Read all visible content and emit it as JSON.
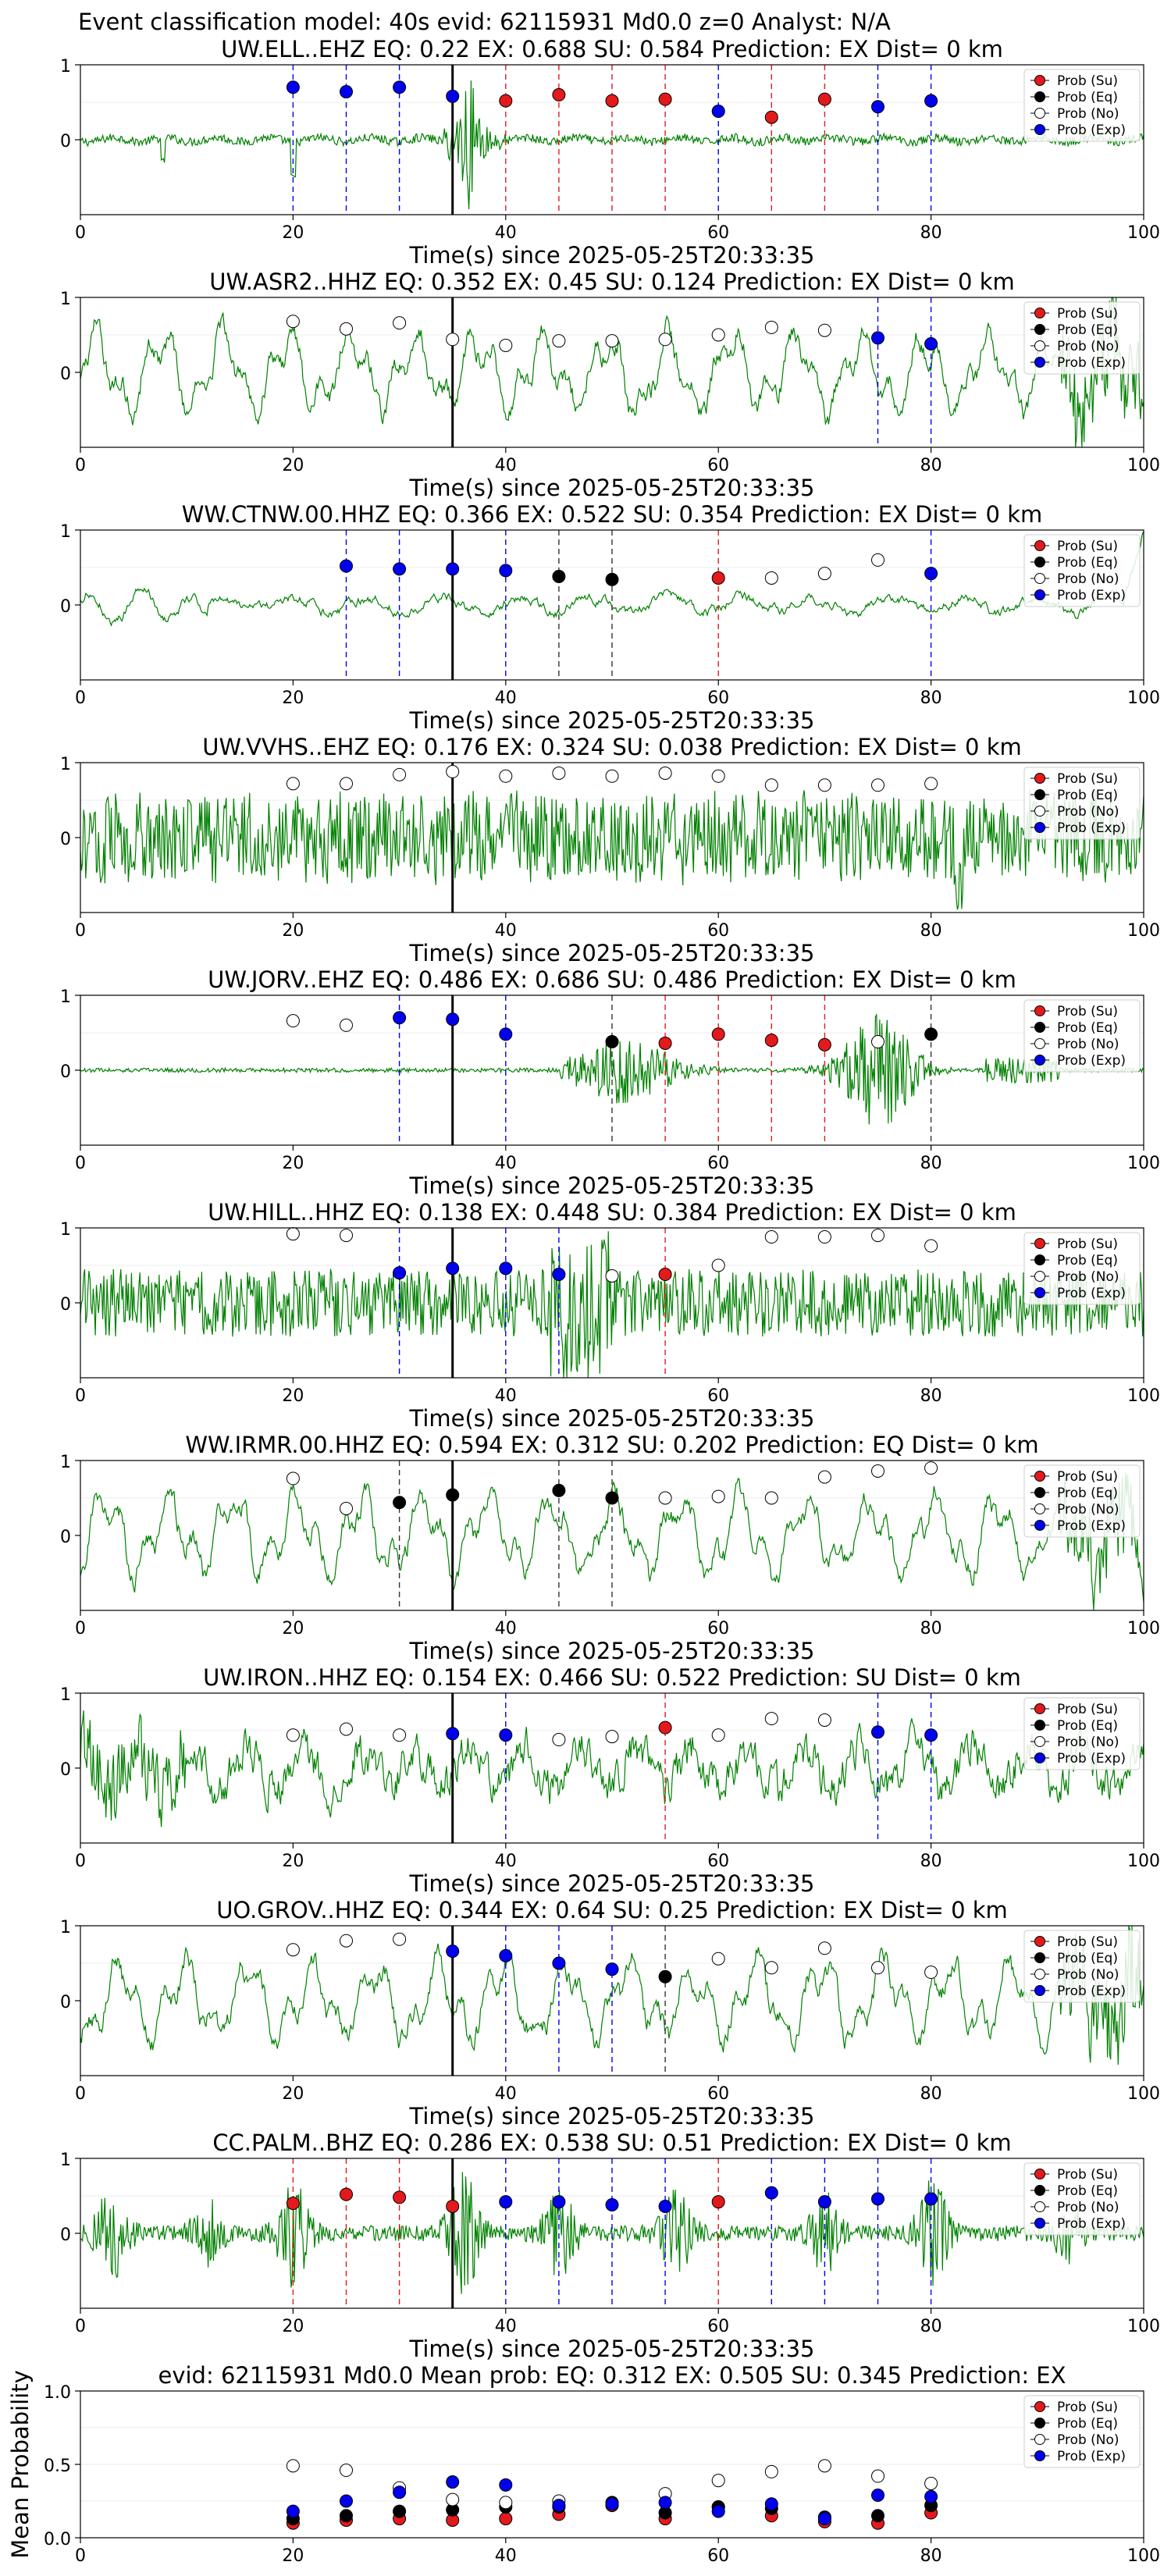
{
  "figure": {
    "suptitle": "Event classification model: 40s evid: 62115931 Md0.0 z=0 Analyst: N/A"
  },
  "colors": {
    "waveform": "#008000",
    "su": "#e31a1c",
    "eq": "#000000",
    "no": "#ffffff",
    "exp": "#0000ee",
    "su_line": "#e31a1c",
    "exp_line": "#0000ee",
    "eq_line": "#333333",
    "origin_line": "#000000"
  },
  "legend": [
    "Prob (Su)",
    "Prob (Eq)",
    "Prob (No)",
    "Prob (Exp)"
  ],
  "chart_data": [
    {
      "type": "line",
      "title": "UW.ELL..EHZ   EQ: 0.22   EX: 0.688   SU: 0.584   Prediction: EX    Dist= 0 km",
      "xlabel": "Time(s) since 2025-05-25T20:33:35",
      "xlim": [
        0,
        100
      ],
      "ylim": [
        -1,
        1
      ],
      "xticks": [
        "0",
        "20",
        "40",
        "60",
        "80",
        "100"
      ],
      "yticks": [
        "1",
        "0"
      ],
      "origin": 35,
      "style": "impulsive",
      "x": [
        20,
        25,
        30,
        35,
        40,
        45,
        50,
        55,
        60,
        65,
        70,
        75,
        80
      ],
      "points": [
        [
          "Exp",
          0.7
        ],
        [
          "Exp",
          0.64
        ],
        [
          "Exp",
          0.7
        ],
        [
          "Exp",
          0.58
        ],
        [
          "Su",
          0.52
        ],
        [
          "Su",
          0.6
        ],
        [
          "Su",
          0.52
        ],
        [
          "Su",
          0.54
        ],
        [
          "Exp",
          0.38
        ],
        [
          "Su",
          0.3
        ],
        [
          "Su",
          0.54
        ],
        [
          "Exp",
          0.44
        ],
        [
          "Exp",
          0.52
        ]
      ]
    },
    {
      "type": "line",
      "title": "UW.ASR2..HHZ   EQ: 0.352   EX: 0.45   SU: 0.124   Prediction: EX    Dist= 0 km",
      "xlabel": "Time(s) since 2025-05-25T20:33:35",
      "xlim": [
        0,
        100
      ],
      "ylim": [
        -1,
        1
      ],
      "xticks": [
        "0",
        "20",
        "40",
        "60",
        "80",
        "100"
      ],
      "yticks": [
        "1",
        "0"
      ],
      "origin": 35,
      "style": "smooth",
      "x": [
        20,
        25,
        30,
        35,
        40,
        45,
        50,
        55,
        60,
        65,
        70,
        75,
        80
      ],
      "points": [
        [
          "No",
          0.68
        ],
        [
          "No",
          0.58
        ],
        [
          "No",
          0.66
        ],
        [
          "No",
          0.44
        ],
        [
          "No",
          0.36
        ],
        [
          "No",
          0.42
        ],
        [
          "No",
          0.42
        ],
        [
          "No",
          0.44
        ],
        [
          "No",
          0.5
        ],
        [
          "No",
          0.6
        ],
        [
          "No",
          0.56
        ],
        [
          "Exp",
          0.46
        ],
        [
          "Exp",
          0.38
        ]
      ]
    },
    {
      "type": "line",
      "title": "WW.CTNW.00.HHZ   EQ: 0.366   EX: 0.522   SU: 0.354   Prediction: EX    Dist= 0 km",
      "xlabel": "Time(s) since 2025-05-25T20:33:35",
      "xlim": [
        0,
        100
      ],
      "ylim": [
        -1,
        1
      ],
      "xticks": [
        "0",
        "20",
        "40",
        "60",
        "80",
        "100"
      ],
      "yticks": [
        "1",
        "0"
      ],
      "origin": 35,
      "style": "calm",
      "x": [
        25,
        30,
        35,
        40,
        45,
        50,
        60,
        65,
        70,
        75,
        80
      ],
      "points": [
        [
          "Exp",
          0.52
        ],
        [
          "Exp",
          0.48
        ],
        [
          "Exp",
          0.48
        ],
        [
          "Exp",
          0.46
        ],
        [
          "Eq",
          0.38
        ],
        [
          "Eq",
          0.34
        ],
        [
          "Su",
          0.36
        ],
        [
          "No",
          0.36
        ],
        [
          "No",
          0.42
        ],
        [
          "No",
          0.6
        ],
        [
          "Exp",
          0.42
        ]
      ]
    },
    {
      "type": "line",
      "title": "UW.VVHS..EHZ   EQ: 0.176   EX: 0.324   SU: 0.038   Prediction: EX    Dist= 0 km",
      "xlabel": "Time(s) since 2025-05-25T20:33:35",
      "xlim": [
        0,
        100
      ],
      "ylim": [
        -1,
        1
      ],
      "xticks": [
        "0",
        "20",
        "40",
        "60",
        "80",
        "100"
      ],
      "yticks": [
        "1",
        "0"
      ],
      "origin": 35,
      "style": "noise",
      "x": [
        20,
        25,
        30,
        35,
        40,
        45,
        50,
        55,
        60,
        65,
        70,
        75,
        80
      ],
      "points": [
        [
          "No",
          0.72
        ],
        [
          "No",
          0.72
        ],
        [
          "No",
          0.84
        ],
        [
          "No",
          0.88
        ],
        [
          "No",
          0.82
        ],
        [
          "No",
          0.86
        ],
        [
          "No",
          0.82
        ],
        [
          "No",
          0.86
        ],
        [
          "No",
          0.82
        ],
        [
          "No",
          0.7
        ],
        [
          "No",
          0.7
        ],
        [
          "No",
          0.7
        ],
        [
          "No",
          0.72
        ]
      ]
    },
    {
      "type": "line",
      "title": "UW.JORV..EHZ   EQ: 0.486   EX: 0.686   SU: 0.486   Prediction: EX    Dist= 0 km",
      "xlabel": "Time(s) since 2025-05-25T20:33:35",
      "xlim": [
        0,
        100
      ],
      "ylim": [
        -1,
        1
      ],
      "xticks": [
        "0",
        "20",
        "40",
        "60",
        "80",
        "100"
      ],
      "yticks": [
        "1",
        "0"
      ],
      "origin": 35,
      "style": "bursts",
      "x": [
        20,
        25,
        30,
        35,
        40,
        50,
        55,
        60,
        65,
        70,
        75,
        80
      ],
      "points": [
        [
          "No",
          0.66
        ],
        [
          "No",
          0.6
        ],
        [
          "Exp",
          0.7
        ],
        [
          "Exp",
          0.68
        ],
        [
          "Exp",
          0.48
        ],
        [
          "Eq",
          0.38
        ],
        [
          "Su",
          0.36
        ],
        [
          "Su",
          0.48
        ],
        [
          "Su",
          0.4
        ],
        [
          "Su",
          0.34
        ],
        [
          "No",
          0.38
        ],
        [
          "Eq",
          0.48
        ]
      ]
    },
    {
      "type": "line",
      "title": "UW.HILL..HHZ   EQ: 0.138   EX: 0.448   SU: 0.384   Prediction: EX    Dist= 0 km",
      "xlabel": "Time(s) since 2025-05-25T20:33:35",
      "xlim": [
        0,
        100
      ],
      "ylim": [
        -1,
        1
      ],
      "xticks": [
        "0",
        "20",
        "40",
        "60",
        "80",
        "100"
      ],
      "yticks": [
        "1",
        "0"
      ],
      "origin": 35,
      "style": "noise2",
      "x": [
        20,
        25,
        30,
        35,
        40,
        45,
        50,
        55,
        60,
        65,
        70,
        75,
        80
      ],
      "points": [
        [
          "No",
          0.92
        ],
        [
          "No",
          0.9
        ],
        [
          "Exp",
          0.4
        ],
        [
          "Exp",
          0.46
        ],
        [
          "Exp",
          0.46
        ],
        [
          "Exp",
          0.38
        ],
        [
          "No",
          0.36
        ],
        [
          "Su",
          0.38
        ],
        [
          "No",
          0.5
        ],
        [
          "No",
          0.88
        ],
        [
          "No",
          0.88
        ],
        [
          "No",
          0.9
        ],
        [
          "No",
          0.76
        ]
      ]
    },
    {
      "type": "line",
      "title": "WW.IRMR.00.HHZ   EQ: 0.594   EX: 0.312   SU: 0.202   Prediction: EQ    Dist= 0 km",
      "xlabel": "Time(s) since 2025-05-25T20:33:35",
      "xlim": [
        0,
        100
      ],
      "ylim": [
        -1,
        1
      ],
      "xticks": [
        "0",
        "20",
        "40",
        "60",
        "80",
        "100"
      ],
      "yticks": [
        "1",
        "0"
      ],
      "origin": 35,
      "style": "smooth",
      "x": [
        20,
        25,
        30,
        35,
        45,
        50,
        55,
        60,
        65,
        70,
        75,
        80
      ],
      "points": [
        [
          "No",
          0.76
        ],
        [
          "No",
          0.36
        ],
        [
          "Eq",
          0.44
        ],
        [
          "Eq",
          0.54
        ],
        [
          "Eq",
          0.6
        ],
        [
          "Eq",
          0.5
        ],
        [
          "No",
          0.5
        ],
        [
          "No",
          0.52
        ],
        [
          "No",
          0.5
        ],
        [
          "No",
          0.78
        ],
        [
          "No",
          0.86
        ],
        [
          "No",
          0.9
        ]
      ]
    },
    {
      "type": "line",
      "title": "UW.IRON..HHZ   EQ: 0.154   EX: 0.466   SU: 0.522   Prediction: SU    Dist= 0 km",
      "xlabel": "Time(s) since 2025-05-25T20:33:35",
      "xlim": [
        0,
        100
      ],
      "ylim": [
        -1,
        1
      ],
      "xticks": [
        "0",
        "20",
        "40",
        "60",
        "80",
        "100"
      ],
      "yticks": [
        "1",
        "0"
      ],
      "origin": 35,
      "style": "rough",
      "x": [
        20,
        25,
        30,
        35,
        40,
        45,
        50,
        55,
        60,
        65,
        70,
        75,
        80
      ],
      "points": [
        [
          "No",
          0.44
        ],
        [
          "No",
          0.52
        ],
        [
          "No",
          0.44
        ],
        [
          "Exp",
          0.46
        ],
        [
          "Exp",
          0.44
        ],
        [
          "No",
          0.38
        ],
        [
          "No",
          0.42
        ],
        [
          "Su",
          0.54
        ],
        [
          "No",
          0.44
        ],
        [
          "No",
          0.66
        ],
        [
          "No",
          0.64
        ],
        [
          "Exp",
          0.48
        ],
        [
          "Exp",
          0.44
        ]
      ]
    },
    {
      "type": "line",
      "title": "UO.GROV..HHZ   EQ: 0.344   EX: 0.64   SU: 0.25   Prediction: EX    Dist= 0 km",
      "xlabel": "Time(s) since 2025-05-25T20:33:35",
      "xlim": [
        0,
        100
      ],
      "ylim": [
        -1,
        1
      ],
      "xticks": [
        "0",
        "20",
        "40",
        "60",
        "80",
        "100"
      ],
      "yticks": [
        "1",
        "0"
      ],
      "origin": 35,
      "style": "smooth",
      "x": [
        20,
        25,
        30,
        35,
        40,
        45,
        50,
        55,
        60,
        65,
        70,
        75,
        80
      ],
      "points": [
        [
          "No",
          0.68
        ],
        [
          "No",
          0.8
        ],
        [
          "No",
          0.82
        ],
        [
          "Exp",
          0.66
        ],
        [
          "Exp",
          0.6
        ],
        [
          "Exp",
          0.5
        ],
        [
          "Exp",
          0.42
        ],
        [
          "Eq",
          0.32
        ],
        [
          "No",
          0.56
        ],
        [
          "No",
          0.44
        ],
        [
          "No",
          0.7
        ],
        [
          "No",
          0.44
        ],
        [
          "No",
          0.38
        ]
      ]
    },
    {
      "type": "line",
      "title": "CC.PALM..BHZ   EQ: 0.286   EX: 0.538   SU: 0.51   Prediction: EX    Dist= 0 km",
      "xlabel": "Time(s) since 2025-05-25T20:33:35",
      "xlim": [
        0,
        100
      ],
      "ylim": [
        -1,
        1
      ],
      "xticks": [
        "0",
        "20",
        "40",
        "60",
        "80",
        "100"
      ],
      "yticks": [
        "1",
        "0"
      ],
      "origin": 35,
      "style": "bursts2",
      "x": [
        20,
        25,
        30,
        35,
        40,
        45,
        50,
        55,
        60,
        65,
        70,
        75,
        80
      ],
      "points": [
        [
          "Su",
          0.4
        ],
        [
          "Su",
          0.52
        ],
        [
          "Su",
          0.48
        ],
        [
          "Su",
          0.36
        ],
        [
          "Exp",
          0.42
        ],
        [
          "Exp",
          0.42
        ],
        [
          "Exp",
          0.38
        ],
        [
          "Exp",
          0.36
        ],
        [
          "Su",
          0.42
        ],
        [
          "Exp",
          0.54
        ],
        [
          "Exp",
          0.42
        ],
        [
          "Exp",
          0.46
        ],
        [
          "Exp",
          0.46
        ]
      ]
    },
    {
      "type": "scatter",
      "title": "evid: 62115931   Md0.0   Mean prob:   EQ: 0.312  EX: 0.505  SU: 0.345   Prediction: EX",
      "ylabel": "Mean Probability",
      "xlim": [
        0,
        100
      ],
      "ylim": [
        0,
        1
      ],
      "xticks": [
        "0",
        "20",
        "40",
        "60",
        "80",
        "100"
      ],
      "yticks": [
        "1.0",
        "0.5",
        "0.0"
      ],
      "x": [
        20,
        25,
        30,
        35,
        40,
        45,
        50,
        55,
        60,
        65,
        70,
        75,
        80
      ],
      "series": [
        {
          "name": "Prob (Su)",
          "values": [
            0.1,
            0.12,
            0.13,
            0.12,
            0.13,
            0.16,
            0.22,
            0.13,
            0.21,
            0.15,
            0.11,
            0.1,
            0.17
          ]
        },
        {
          "name": "Prob (Eq)",
          "values": [
            0.13,
            0.15,
            0.18,
            0.19,
            0.21,
            0.21,
            0.24,
            0.17,
            0.21,
            0.2,
            0.14,
            0.15,
            0.22
          ]
        },
        {
          "name": "Prob (No)",
          "values": [
            0.49,
            0.46,
            0.34,
            0.26,
            0.24,
            0.25,
            0.23,
            0.3,
            0.39,
            0.45,
            0.49,
            0.42,
            0.37
          ]
        },
        {
          "name": "Prob (Exp)",
          "values": [
            0.18,
            0.25,
            0.31,
            0.38,
            0.36,
            0.22,
            0.23,
            0.24,
            0.18,
            0.23,
            0.13,
            0.29,
            0.28
          ]
        }
      ]
    }
  ]
}
